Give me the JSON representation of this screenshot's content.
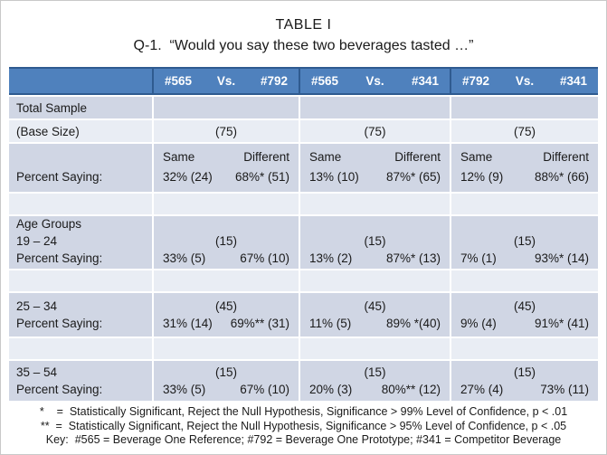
{
  "page": {
    "title": "TABLE I",
    "subtitle": "Q-1.  “Would you say these two beverages tasted …”"
  },
  "colors": {
    "header_bg": "#4F81BD",
    "header_line": "#2F5B90",
    "band_dark": "#D0D6E4",
    "band_light": "#E9EDF4",
    "text": "#1A1A1A",
    "slide_border": "#C9C9C9"
  },
  "header": {
    "groups": [
      {
        "left": "#565",
        "vs": "Vs.",
        "right": "#792"
      },
      {
        "left": "#565",
        "vs": "Vs.",
        "right": "#341"
      },
      {
        "left": "#792",
        "vs": "Vs.",
        "right": "#341"
      }
    ]
  },
  "rows": {
    "total_sample": {
      "label": "Total Sample"
    },
    "base_size": {
      "label": "(Base Size)",
      "values": [
        "(75)",
        "(75)",
        "(75)"
      ]
    },
    "percent_saying": {
      "label": "Percent Saying:",
      "col_headers": {
        "same": "Same",
        "different": "Different"
      },
      "cells": [
        {
          "same": "32% (24)",
          "different": "68%* (51)"
        },
        {
          "same": "13% (10)",
          "different": "87%* (65)"
        },
        {
          "same": "12% (9)",
          "different": "88%* (66)"
        }
      ]
    }
  },
  "age_sections": [
    {
      "heading": "Age Groups",
      "range": "19 – 24",
      "percent_label": "Percent Saying:",
      "bases": [
        "(15)",
        "(15)",
        "(15)"
      ],
      "cells": [
        {
          "same": "33% (5)",
          "different": "67% (10)"
        },
        {
          "same": "13% (2)",
          "different": "87%* (13)"
        },
        {
          "same": "7% (1)",
          "different": "93%* (14)"
        }
      ]
    },
    {
      "range": "25 – 34",
      "percent_label": "Percent Saying:",
      "bases": [
        "(45)",
        "(45)",
        "(45)"
      ],
      "cells": [
        {
          "same": "31% (14)",
          "different": "69%** (31)"
        },
        {
          "same": "11% (5)",
          "different": "89% *(40)"
        },
        {
          "same": "9% (4)",
          "different": "91%* (41)"
        }
      ]
    },
    {
      "range": "35 – 54",
      "percent_label": "Percent Saying:",
      "bases": [
        "(15)",
        "(15)",
        "(15)"
      ],
      "cells": [
        {
          "same": "33% (5)",
          "different": "67% (10)"
        },
        {
          "same": "20% (3)",
          "different": "80%** (12)"
        },
        {
          "same": "27% (4)",
          "different": "73% (11)"
        }
      ]
    }
  ],
  "footnotes": [
    "*    =  Statistically Significant, Reject the Null Hypothesis, Significance > 99% Level of Confidence, p < .01",
    "**  =  Statistically Significant, Reject the Null Hypothesis, Significance > 95% Level of Confidence, p < .05",
    "Key:  #565 = Beverage One Reference; #792 = Beverage One Prototype; #341 = Competitor Beverage"
  ]
}
